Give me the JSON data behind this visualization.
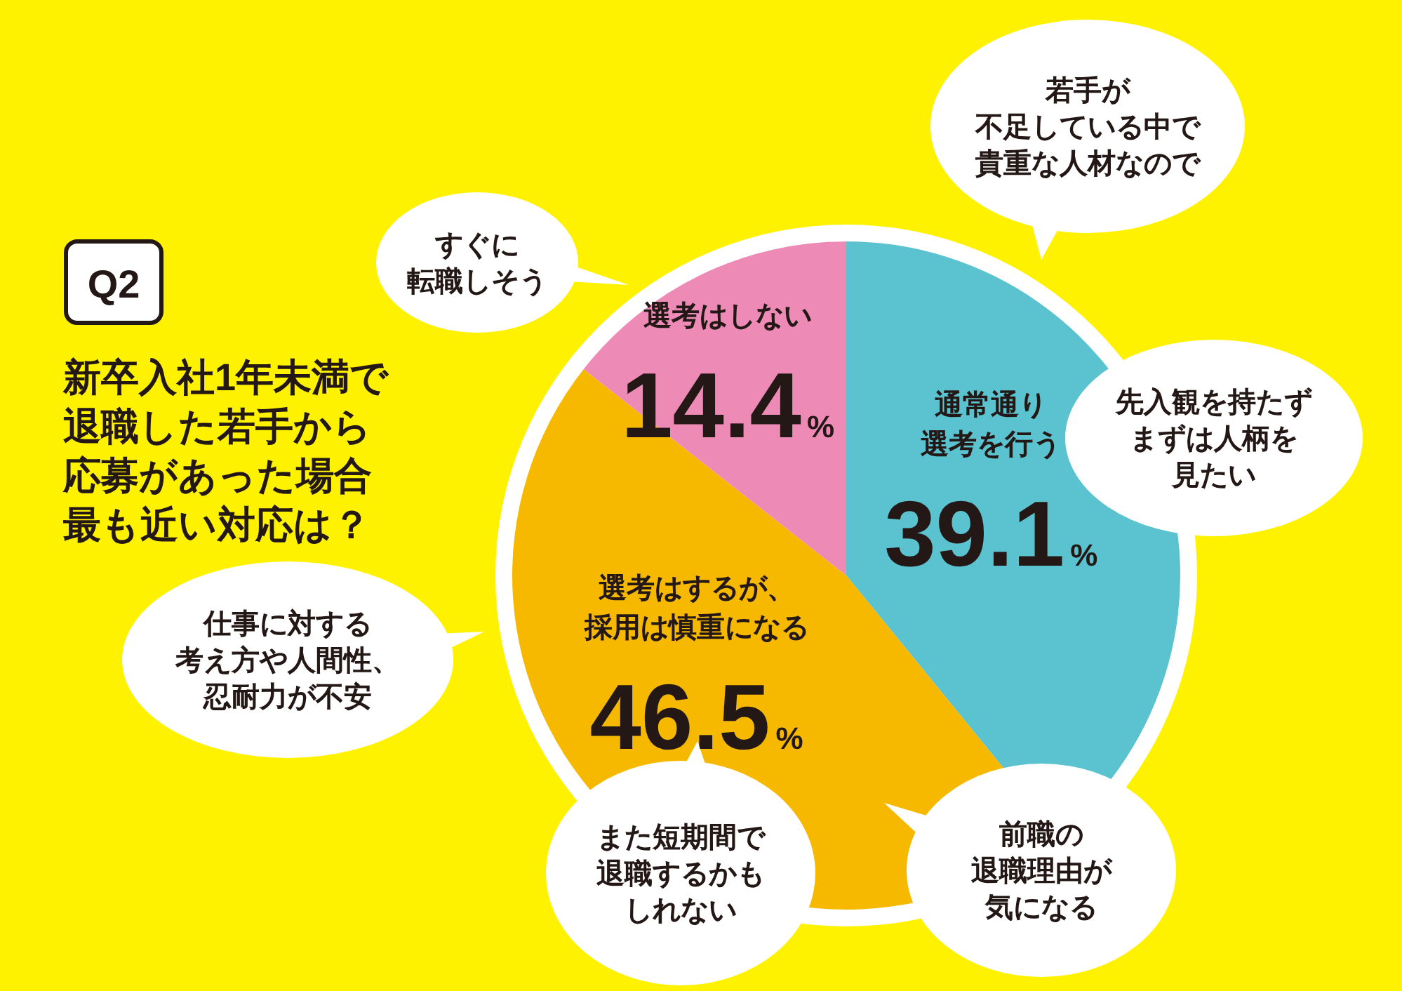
{
  "chart_data": {
    "type": "pie",
    "title": "Q2",
    "subtitle": "新卒入社1年未満で退職した若手から応募があった場合最も近い対応は？",
    "categories": [
      "通常通り選考を行う",
      "選考はするが、採用は慎重になる",
      "選考はしない"
    ],
    "values": [
      39.1,
      46.5,
      14.4
    ],
    "colors": [
      "#5bc2cf",
      "#f7b900",
      "#ee8ab6"
    ],
    "value_labels": [
      "39.1%",
      "46.5%",
      "14.4%"
    ],
    "annotations": [
      "若手が不足している中で貴重な人材なので",
      "先入観を持たずまずは人柄を見たい",
      "前職の退職理由が気になる",
      "また短期間で退職するかもしれない",
      "仕事に対する考え方や人間性、忍耐力が不安",
      "すぐに転職しそう"
    ]
  }
}
